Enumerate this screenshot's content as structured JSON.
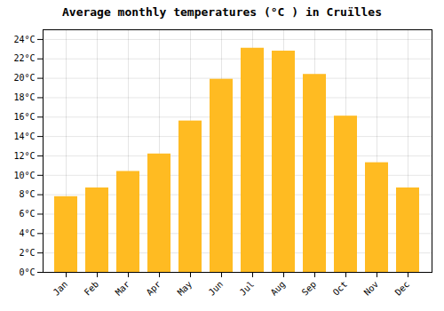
{
  "chart_data": {
    "type": "bar",
    "title": "Average monthly temperatures (°C ) in Cruïlles",
    "categories": [
      "Jan",
      "Feb",
      "Mar",
      "Apr",
      "May",
      "Jun",
      "Jul",
      "Aug",
      "Sep",
      "Oct",
      "Nov",
      "Dec"
    ],
    "values": [
      7.8,
      8.7,
      10.4,
      12.2,
      15.6,
      19.9,
      23.1,
      22.8,
      20.4,
      16.1,
      11.3,
      8.7
    ],
    "color": "#FFBB22",
    "ylim": [
      0,
      25
    ],
    "yticks": [
      {
        "value": 0,
        "label": "0°C"
      },
      {
        "value": 2,
        "label": "2°C"
      },
      {
        "value": 4,
        "label": "4°C"
      },
      {
        "value": 6,
        "label": "6°C"
      },
      {
        "value": 8,
        "label": "8°C"
      },
      {
        "value": 10,
        "label": "10°C"
      },
      {
        "value": 12,
        "label": "12°C"
      },
      {
        "value": 14,
        "label": "14°C"
      },
      {
        "value": 16,
        "label": "16°C"
      },
      {
        "value": 18,
        "label": "18°C"
      },
      {
        "value": 20,
        "label": "20°C"
      },
      {
        "value": 22,
        "label": "22°C"
      },
      {
        "value": 24,
        "label": "24°C"
      }
    ],
    "grid": true
  }
}
